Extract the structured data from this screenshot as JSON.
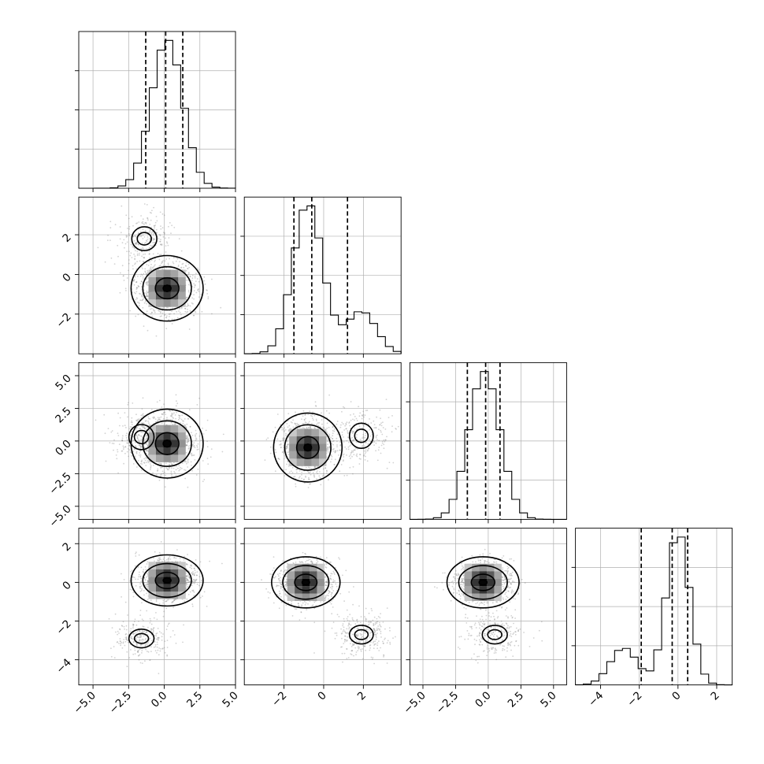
{
  "chart_data": {
    "type": "corner",
    "grid": true,
    "n_params": 4,
    "quantile_lines": [
      0.16,
      0.5,
      0.84
    ],
    "params": [
      {
        "index": 0,
        "range": [
          -6.0,
          5.0
        ],
        "ticks": [
          -5,
          -2.5,
          0,
          2.5,
          5
        ],
        "tick_labels": [
          "−5.0",
          "−2.5",
          "0.0",
          "2.5",
          "5.0"
        ],
        "components": [
          {
            "weight": 1.0,
            "mean": 0.2,
            "sd": 1.1
          }
        ],
        "quantiles": [
          -1.3,
          0.1,
          1.3
        ]
      },
      {
        "index": 1,
        "range": [
          -4.0,
          3.9
        ],
        "ticks": [
          -2,
          0,
          2
        ],
        "tick_labels": [
          "−2",
          "0",
          "2"
        ],
        "components": [
          {
            "weight": 0.78,
            "mean": -0.8,
            "sd": 0.75
          },
          {
            "weight": 0.22,
            "mean": 1.9,
            "sd": 0.75
          }
        ],
        "quantiles": [
          -1.5,
          -0.6,
          1.2
        ]
      },
      {
        "index": 2,
        "range": [
          -6.0,
          6.0
        ],
        "ticks": [
          -5,
          -2.5,
          0,
          2.5,
          5
        ],
        "tick_labels": [
          "−5.0",
          "−2.5",
          "0.0",
          "2.5",
          "5.0"
        ],
        "components": [
          {
            "weight": 1.0,
            "mean": -0.3,
            "sd": 1.2
          }
        ],
        "quantiles": [
          -1.6,
          -0.2,
          0.9
        ]
      },
      {
        "index": 3,
        "range": [
          -5.3,
          2.8
        ],
        "ticks": [
          -4,
          -2,
          0,
          2
        ],
        "tick_labels": [
          "−4",
          "−2",
          "0",
          "2"
        ],
        "components": [
          {
            "weight": 0.78,
            "mean": 0.0,
            "sd": 0.6
          },
          {
            "weight": 0.22,
            "mean": -2.8,
            "sd": 0.7
          }
        ],
        "quantiles": [
          -1.9,
          -0.3,
          0.5
        ]
      }
    ],
    "pairs": [
      {
        "x": 0,
        "y": 1,
        "modes": [
          {
            "x": 0.2,
            "y": -0.7,
            "w": 0.8
          },
          {
            "x": -1.4,
            "y": 1.8,
            "w": 0.2
          }
        ]
      },
      {
        "x": 0,
        "y": 2,
        "modes": [
          {
            "x": 0.2,
            "y": -0.2,
            "w": 0.82
          },
          {
            "x": -1.6,
            "y": 0.3,
            "w": 0.18
          }
        ]
      },
      {
        "x": 1,
        "y": 2,
        "modes": [
          {
            "x": -0.8,
            "y": -0.5,
            "w": 0.8
          },
          {
            "x": 1.9,
            "y": 0.4,
            "w": 0.2
          }
        ]
      },
      {
        "x": 0,
        "y": 3,
        "modes": [
          {
            "x": 0.2,
            "y": 0.1,
            "w": 0.8
          },
          {
            "x": -1.6,
            "y": -2.9,
            "w": 0.2
          }
        ]
      },
      {
        "x": 1,
        "y": 3,
        "modes": [
          {
            "x": -0.9,
            "y": 0.0,
            "w": 0.78
          },
          {
            "x": 1.9,
            "y": -2.7,
            "w": 0.22
          }
        ]
      },
      {
        "x": 2,
        "y": 3,
        "modes": [
          {
            "x": -0.4,
            "y": 0.0,
            "w": 0.8
          },
          {
            "x": 0.5,
            "y": -2.7,
            "w": 0.2
          }
        ]
      }
    ]
  }
}
